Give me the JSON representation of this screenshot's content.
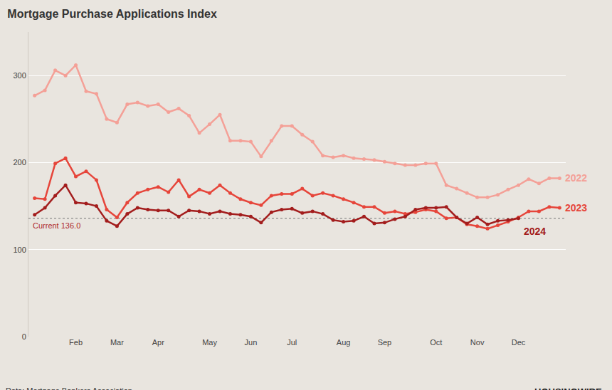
{
  "chart_data": {
    "type": "line",
    "title": "Mortgage Purchase Applications Index",
    "source": "Data: Mortgage Bankers Association",
    "brand": "HOUSINGWIRE",
    "marker": "circle",
    "grid": true,
    "categories": [
      null,
      null,
      null,
      null,
      "Feb",
      null,
      null,
      null,
      "Mar",
      null,
      null,
      null,
      "Apr",
      null,
      null,
      null,
      null,
      "May",
      null,
      null,
      null,
      "Jun",
      null,
      null,
      null,
      "Jul",
      null,
      null,
      null,
      null,
      "Aug",
      null,
      null,
      null,
      "Sep",
      null,
      null,
      null,
      null,
      "Oct",
      null,
      null,
      null,
      "Nov",
      null,
      null,
      null,
      "Dec",
      null,
      null,
      null,
      null
    ],
    "ylim": [
      0,
      350
    ],
    "yticks": [
      0,
      100,
      200,
      300
    ],
    "reference_line": {
      "value": 136,
      "label": "Current 136.0"
    },
    "series": [
      {
        "name": "2022",
        "color": "#f4a097",
        "values": [
          277,
          283,
          306,
          300,
          312,
          282,
          279,
          250,
          246,
          267,
          269,
          265,
          267,
          258,
          262,
          254,
          234,
          244,
          255,
          225,
          225,
          224,
          207,
          225,
          242,
          242,
          232,
          224,
          208,
          206,
          208,
          205,
          204,
          203,
          201,
          199,
          197,
          197,
          199,
          199,
          174,
          170,
          165,
          160,
          160,
          163,
          169,
          174,
          181,
          176,
          182,
          182
        ]
      },
      {
        "name": "2023",
        "color": "#e6453a",
        "values": [
          159,
          158,
          199,
          205,
          184,
          190,
          180,
          146,
          137,
          154,
          165,
          169,
          172,
          166,
          180,
          161,
          169,
          165,
          174,
          165,
          158,
          154,
          151,
          162,
          164,
          164,
          170,
          162,
          165,
          162,
          158,
          154,
          149,
          149,
          142,
          144,
          141,
          143,
          146,
          144,
          136,
          137,
          129,
          127,
          124,
          128,
          132,
          137,
          144,
          144,
          149,
          148
        ]
      },
      {
        "name": "2024",
        "color": "#a31d1d",
        "values": [
          140,
          148,
          162,
          174,
          154,
          153,
          150,
          133,
          127,
          141,
          148,
          146,
          145,
          145,
          138,
          145,
          144,
          141,
          144,
          141,
          140,
          138,
          131,
          143,
          146,
          147,
          142,
          144,
          141,
          134,
          132,
          133,
          138,
          130,
          131,
          135,
          138,
          146,
          148,
          148,
          149,
          137,
          130,
          137,
          129,
          133,
          134,
          136,
          null,
          null,
          null,
          null
        ]
      }
    ]
  }
}
